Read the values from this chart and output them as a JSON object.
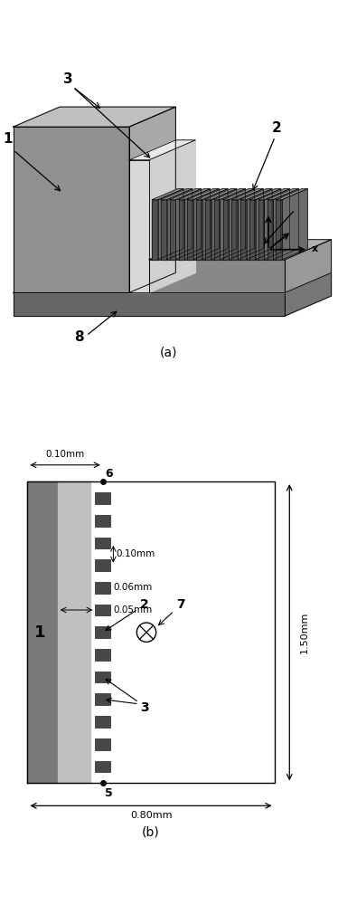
{
  "fig_width": 3.74,
  "fig_height": 10.0,
  "bg_color": "#ffffff",
  "panel_a_label": "(a)",
  "panel_b_label": "(b)",
  "dim_010mm": "0.10mm",
  "dim_006mm": "0.06mm",
  "dim_005mm": "0.05mm",
  "dim_150mm": "1.50mm",
  "dim_080mm": "0.80mm",
  "color_dark_gray": "#555555",
  "color_med_gray": "#888888",
  "color_light_gray": "#b0b0b0",
  "color_lighter_gray": "#cccccc",
  "color_fin": "#505050",
  "color_substrate_top": "#909090",
  "color_substrate_side": "#666666",
  "color_left_block_front": "#909090",
  "color_left_block_top": "#c0c0c0",
  "color_left_block_right": "#a8a8a8",
  "color_ferrite_b": "#909090",
  "color_strip_b": "#c0c0c0",
  "color_white": "#ffffff",
  "n_fins_3d": 15,
  "n_squares_b": 13
}
